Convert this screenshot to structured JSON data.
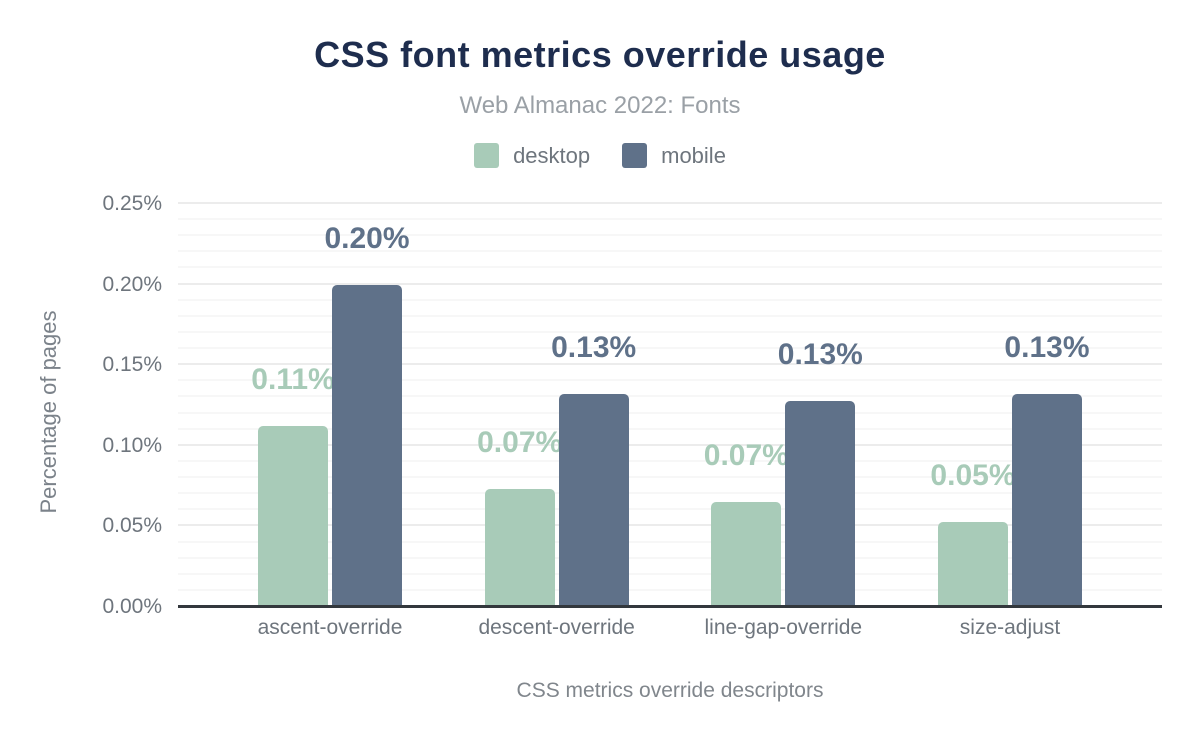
{
  "figure": {
    "title_color": "#1e2d4e",
    "subtitle_color": "#9aa0a6"
  },
  "chart_data": {
    "type": "bar",
    "title": "CSS font metrics override usage",
    "subtitle": "Web Almanac 2022: Fonts",
    "categories": [
      "ascent-override",
      "descent-override",
      "line-gap-override",
      "size-adjust"
    ],
    "series": [
      {
        "name": "desktop",
        "color": "#a8cbb8",
        "values": [
          0.112,
          0.073,
          0.065,
          0.053
        ],
        "labels": [
          "0.11%",
          "0.07%",
          "0.07%",
          "0.05%"
        ]
      },
      {
        "name": "mobile",
        "color": "#5f7189",
        "values": [
          0.2,
          0.132,
          0.128,
          0.132
        ],
        "labels": [
          "0.20%",
          "0.13%",
          "0.13%",
          "0.13%"
        ]
      }
    ],
    "xlabel": "CSS metrics override descriptors",
    "ylabel": "Percentage of pages",
    "ylim": [
      0,
      0.25
    ],
    "yticks": [
      "0.00%",
      "0.05%",
      "0.10%",
      "0.15%",
      "0.20%",
      "0.25%"
    ],
    "grid": "horizontal, minor step 0.01%, major step 0.05%",
    "grid_minor_step": 0.01,
    "grid_major_step": 0.05,
    "legend_position": "top center",
    "value_labels": "above bars, colored per series"
  }
}
